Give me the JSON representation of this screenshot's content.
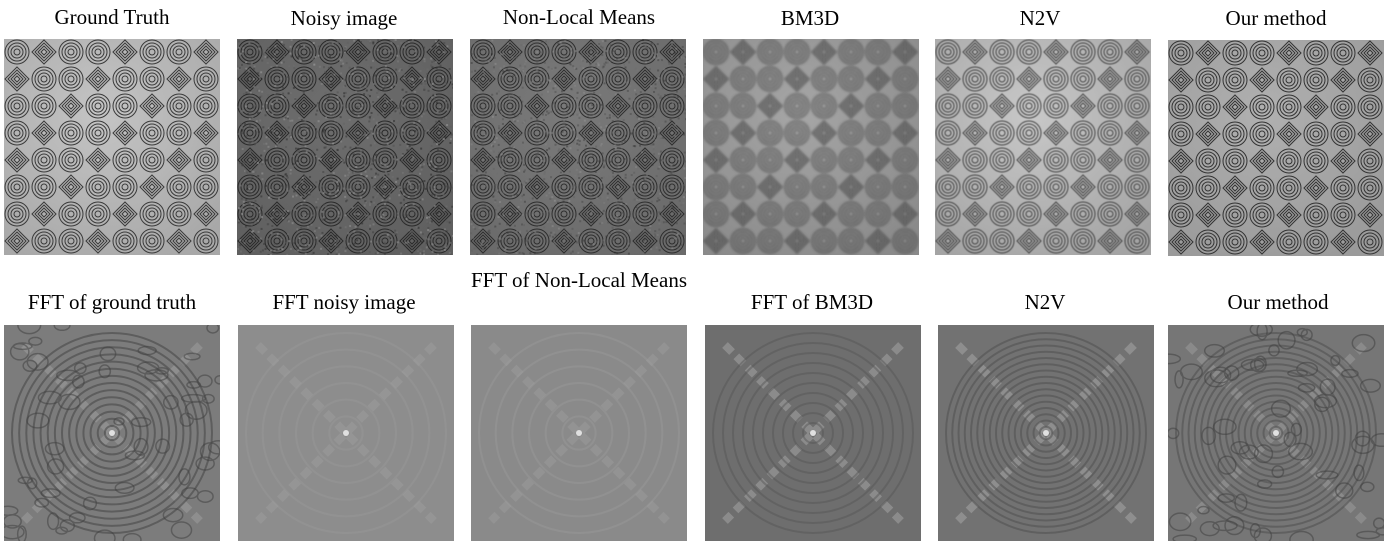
{
  "row1": {
    "captions": [
      "Ground Truth",
      "Noisy image",
      "Non-Local Means",
      "BM3D",
      "N2V",
      "Our method"
    ]
  },
  "row2": {
    "captions": [
      "FFT of ground truth",
      "FFT noisy image",
      "FFT of Non-Local Means",
      "FFT of BM3D",
      "N2V",
      "Our method"
    ]
  }
}
